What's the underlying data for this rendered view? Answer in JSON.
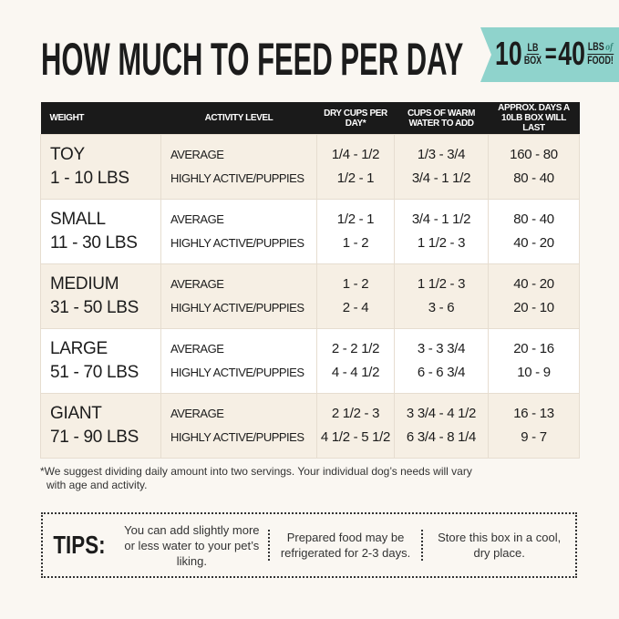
{
  "title": "HOW MUCH TO FEED PER DAY",
  "banner": {
    "left_number": "10",
    "left_top": "LB",
    "left_bottom": "BOX",
    "equals": "=",
    "right_number": "40",
    "right_top": "LBS",
    "right_of": "of",
    "right_bottom": "FOOD!",
    "color": "#8fd3cc"
  },
  "table": {
    "headers": [
      "WEIGHT",
      "ACTIVITY LEVEL",
      "DRY CUPS PER DAY*",
      "CUPS OF WARM WATER TO ADD",
      "APPROX. DAYS A 10LB BOX WILL LAST"
    ],
    "rows": [
      {
        "size": "TOY",
        "range": "1 - 10 LBS",
        "activity": [
          "AVERAGE",
          "HIGHLY ACTIVE/PUPPIES"
        ],
        "dry": [
          "1/4 - 1/2",
          "1/2 - 1"
        ],
        "water": [
          "1/3 - 3/4",
          "3/4 - 1 1/2"
        ],
        "days": [
          "160 - 80",
          "80 - 40"
        ]
      },
      {
        "size": "SMALL",
        "range": "11 - 30 LBS",
        "activity": [
          "AVERAGE",
          "HIGHLY ACTIVE/PUPPIES"
        ],
        "dry": [
          "1/2 - 1",
          "1 - 2"
        ],
        "water": [
          "3/4 - 1 1/2",
          "1 1/2 - 3"
        ],
        "days": [
          "80 - 40",
          "40 - 20"
        ]
      },
      {
        "size": "MEDIUM",
        "range": "31 - 50 LBS",
        "activity": [
          "AVERAGE",
          "HIGHLY ACTIVE/PUPPIES"
        ],
        "dry": [
          "1 - 2",
          "2 - 4"
        ],
        "water": [
          "1 1/2 - 3",
          "3 - 6"
        ],
        "days": [
          "40 - 20",
          "20 - 10"
        ]
      },
      {
        "size": "LARGE",
        "range": "51 - 70 LBS",
        "activity": [
          "AVERAGE",
          "HIGHLY ACTIVE/PUPPIES"
        ],
        "dry": [
          "2 - 2 1/2",
          "4 - 4 1/2"
        ],
        "water": [
          "3 - 3 3/4",
          "6 - 6 3/4"
        ],
        "days": [
          "20 - 16",
          "10 - 9"
        ]
      },
      {
        "size": "GIANT",
        "range": "71 - 90 LBS",
        "activity": [
          "AVERAGE",
          "HIGHLY ACTIVE/PUPPIES"
        ],
        "dry": [
          "2 1/2 - 3",
          "4 1/2 - 5 1/2"
        ],
        "water": [
          "3 3/4 - 4 1/2",
          "6 3/4 - 8 1/4"
        ],
        "days": [
          "16 - 13",
          "9 - 7"
        ]
      }
    ]
  },
  "footnote": {
    "line1": "*We suggest dividing daily amount into two servings. Your individual dog’s needs will vary",
    "line2": "with age and activity."
  },
  "tips": {
    "label": "TIPS:",
    "items": [
      "You can add slightly more or less water to your pet’s liking.",
      "Prepared food may be refrigerated for 2-3 days.",
      "Store this box in a cool, dry place."
    ]
  }
}
